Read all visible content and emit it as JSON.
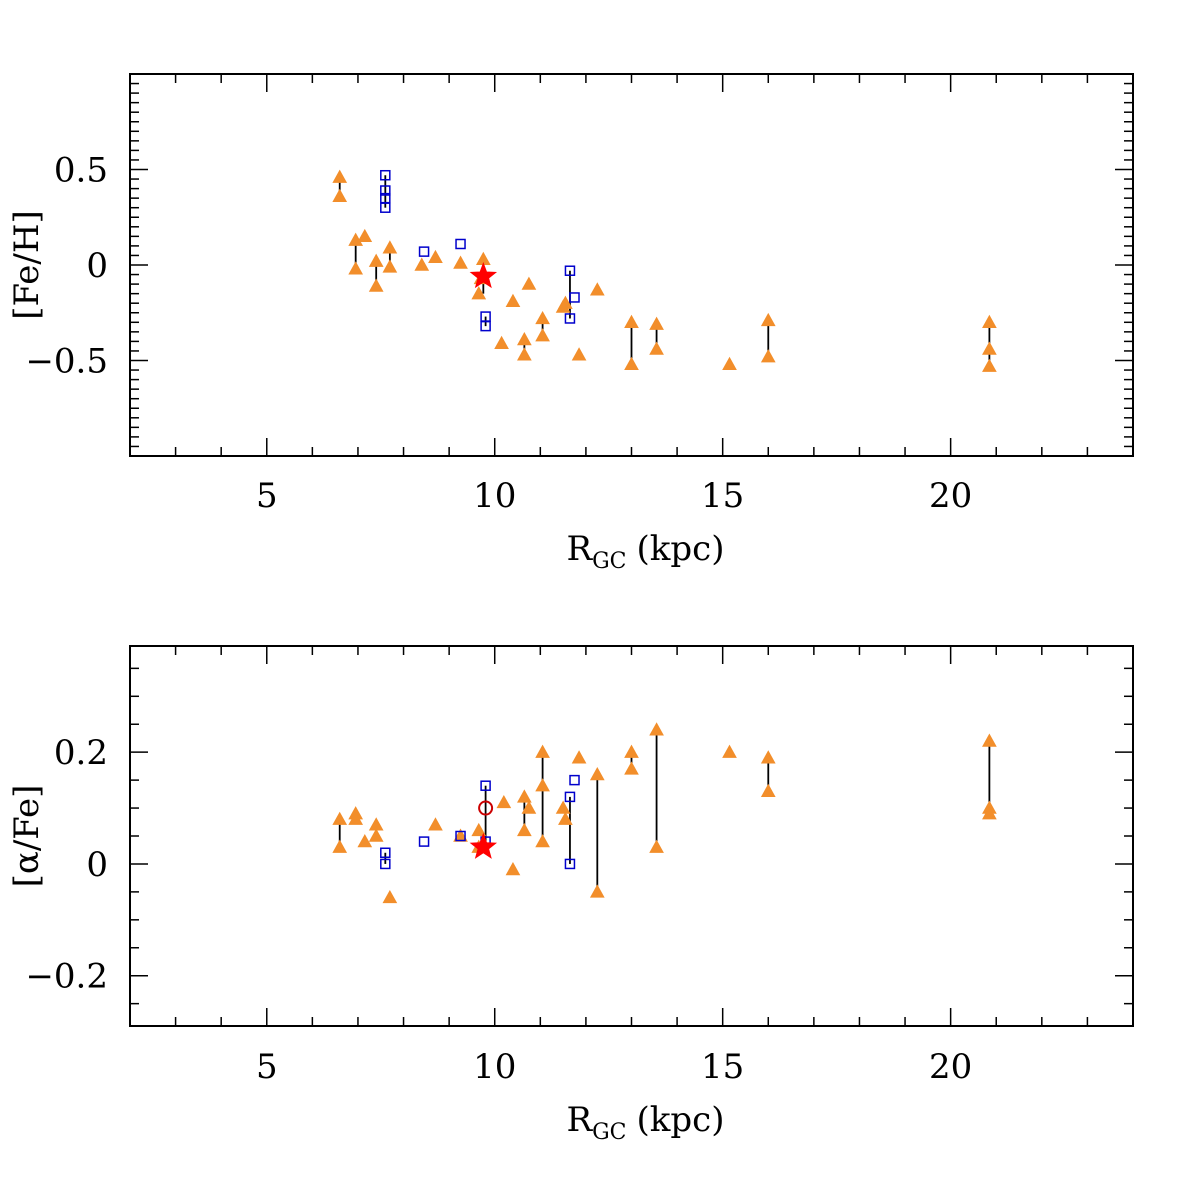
{
  "chart_data": [
    {
      "type": "scatter",
      "title": "",
      "xlabel": {
        "main": "R",
        "sub": "GC",
        "unit": "(kpc)"
      },
      "ylabel": "[Fe/H]",
      "xlim": [
        2,
        24
      ],
      "ylim": [
        -1.0,
        1.0
      ],
      "xticks": [
        5,
        10,
        15,
        20
      ],
      "xtick_labels": [
        "5",
        "10",
        "15",
        "20"
      ],
      "yticks": [
        0.5,
        0,
        -0.5
      ],
      "ytick_labels": [
        "0.5",
        "0",
        "−0.5"
      ],
      "colors": {
        "triangle": "#f28e2b",
        "square": "#0000cc",
        "star": "#ff0000",
        "line": "#000000"
      },
      "series": [
        {
          "name": "orange triangles",
          "marker": "triangle",
          "points": [
            [
              6.6,
              0.46
            ],
            [
              6.6,
              0.36
            ],
            [
              6.95,
              0.13
            ],
            [
              6.95,
              -0.02
            ],
            [
              7.15,
              0.15
            ],
            [
              7.4,
              0.02
            ],
            [
              7.4,
              -0.11
            ],
            [
              7.7,
              0.09
            ],
            [
              7.7,
              -0.01
            ],
            [
              8.4,
              0.0
            ],
            [
              8.7,
              0.04
            ],
            [
              9.25,
              0.01
            ],
            [
              9.65,
              -0.15
            ],
            [
              9.75,
              0.03
            ],
            [
              9.7,
              -0.07
            ],
            [
              10.15,
              -0.41
            ],
            [
              10.4,
              -0.19
            ],
            [
              10.65,
              -0.39
            ],
            [
              10.65,
              -0.47
            ],
            [
              10.75,
              -0.1
            ],
            [
              11.05,
              -0.28
            ],
            [
              11.05,
              -0.37
            ],
            [
              11.5,
              -0.22
            ],
            [
              11.55,
              -0.2
            ],
            [
              11.85,
              -0.47
            ],
            [
              12.25,
              -0.13
            ],
            [
              13.0,
              -0.3
            ],
            [
              13.0,
              -0.52
            ],
            [
              13.55,
              -0.31
            ],
            [
              13.55,
              -0.44
            ],
            [
              15.15,
              -0.52
            ],
            [
              16.0,
              -0.29
            ],
            [
              16.0,
              -0.48
            ],
            [
              20.85,
              -0.3
            ],
            [
              20.85,
              -0.44
            ],
            [
              20.85,
              -0.53
            ]
          ]
        },
        {
          "name": "blue squares",
          "marker": "square",
          "points": [
            [
              7.6,
              0.47
            ],
            [
              7.6,
              0.39
            ],
            [
              7.6,
              0.35
            ],
            [
              7.6,
              0.3
            ],
            [
              8.45,
              0.07
            ],
            [
              9.25,
              0.11
            ],
            [
              9.8,
              -0.27
            ],
            [
              9.8,
              -0.32
            ],
            [
              11.65,
              -0.03
            ],
            [
              11.75,
              -0.17
            ],
            [
              11.65,
              -0.28
            ]
          ]
        },
        {
          "name": "red star",
          "marker": "star",
          "points": [
            [
              9.75,
              -0.06
            ]
          ]
        }
      ],
      "connectors": [
        [
          6.6,
          0.46,
          0.36
        ],
        [
          6.95,
          0.13,
          -0.02
        ],
        [
          7.4,
          0.02,
          -0.11
        ],
        [
          7.7,
          0.09,
          -0.01
        ],
        [
          9.75,
          0.03,
          -0.15
        ],
        [
          10.65,
          -0.39,
          -0.47
        ],
        [
          11.05,
          -0.28,
          -0.37
        ],
        [
          11.65,
          -0.03,
          -0.28
        ],
        [
          13.0,
          -0.3,
          -0.52
        ],
        [
          13.55,
          -0.31,
          -0.44
        ],
        [
          16.0,
          -0.29,
          -0.48
        ],
        [
          20.85,
          -0.3,
          -0.53
        ],
        [
          7.6,
          0.47,
          0.3
        ],
        [
          9.8,
          -0.27,
          -0.32
        ]
      ]
    },
    {
      "type": "scatter",
      "title": "",
      "xlabel": {
        "main": "R",
        "sub": "GC",
        "unit": "(kpc)"
      },
      "ylabel": "[α/Fe]",
      "xlim": [
        2,
        24
      ],
      "ylim": [
        -0.29,
        0.39
      ],
      "xticks": [
        5,
        10,
        15,
        20
      ],
      "xtick_labels": [
        "5",
        "10",
        "15",
        "20"
      ],
      "yticks": [
        0.2,
        0,
        -0.2
      ],
      "ytick_labels": [
        "0.2",
        "0",
        "−0.2"
      ],
      "colors": {
        "triangle": "#f28e2b",
        "square": "#0000cc",
        "star": "#ff0000",
        "circle": "#cc0000",
        "line": "#000000"
      },
      "series": [
        {
          "name": "orange triangles",
          "marker": "triangle",
          "points": [
            [
              6.6,
              0.08
            ],
            [
              6.6,
              0.03
            ],
            [
              6.95,
              0.09
            ],
            [
              6.95,
              0.08
            ],
            [
              7.15,
              0.04
            ],
            [
              7.4,
              0.07
            ],
            [
              7.4,
              0.05
            ],
            [
              7.7,
              -0.06
            ],
            [
              8.7,
              0.07
            ],
            [
              9.25,
              0.05
            ],
            [
              9.65,
              0.06
            ],
            [
              9.65,
              0.03
            ],
            [
              10.2,
              0.11
            ],
            [
              10.4,
              -0.01
            ],
            [
              10.65,
              0.12
            ],
            [
              10.65,
              0.06
            ],
            [
              10.75,
              0.1
            ],
            [
              11.05,
              0.2
            ],
            [
              11.05,
              0.14
            ],
            [
              11.05,
              0.04
            ],
            [
              11.5,
              0.1
            ],
            [
              11.55,
              0.08
            ],
            [
              11.85,
              0.19
            ],
            [
              12.25,
              0.16
            ],
            [
              12.25,
              -0.05
            ],
            [
              13.0,
              0.2
            ],
            [
              13.0,
              0.17
            ],
            [
              13.55,
              0.24
            ],
            [
              13.55,
              0.03
            ],
            [
              15.15,
              0.2
            ],
            [
              16.0,
              0.19
            ],
            [
              16.0,
              0.13
            ],
            [
              20.85,
              0.22
            ],
            [
              20.85,
              0.1
            ],
            [
              20.85,
              0.09
            ]
          ]
        },
        {
          "name": "blue squares",
          "marker": "square",
          "points": [
            [
              7.6,
              0.02
            ],
            [
              7.6,
              0.0
            ],
            [
              8.45,
              0.04
            ],
            [
              9.25,
              0.05
            ],
            [
              9.8,
              0.14
            ],
            [
              9.8,
              0.04
            ],
            [
              11.65,
              0.12
            ],
            [
              11.65,
              0.0
            ],
            [
              11.75,
              0.15
            ]
          ]
        },
        {
          "name": "red circle",
          "marker": "circle",
          "points": [
            [
              9.8,
              0.1
            ]
          ]
        },
        {
          "name": "red star",
          "marker": "star",
          "points": [
            [
              9.75,
              0.03
            ]
          ]
        }
      ],
      "connectors": [
        [
          6.6,
          0.08,
          0.03
        ],
        [
          7.4,
          0.07,
          0.05
        ],
        [
          7.6,
          0.02,
          0.0
        ],
        [
          10.65,
          0.12,
          0.06
        ],
        [
          11.05,
          0.2,
          0.04
        ],
        [
          11.65,
          0.12,
          0.0
        ],
        [
          12.25,
          0.16,
          -0.05
        ],
        [
          13.0,
          0.2,
          0.17
        ],
        [
          13.55,
          0.24,
          0.03
        ],
        [
          16.0,
          0.19,
          0.13
        ],
        [
          20.85,
          0.22,
          0.09
        ],
        [
          9.8,
          0.14,
          0.04
        ]
      ]
    }
  ]
}
